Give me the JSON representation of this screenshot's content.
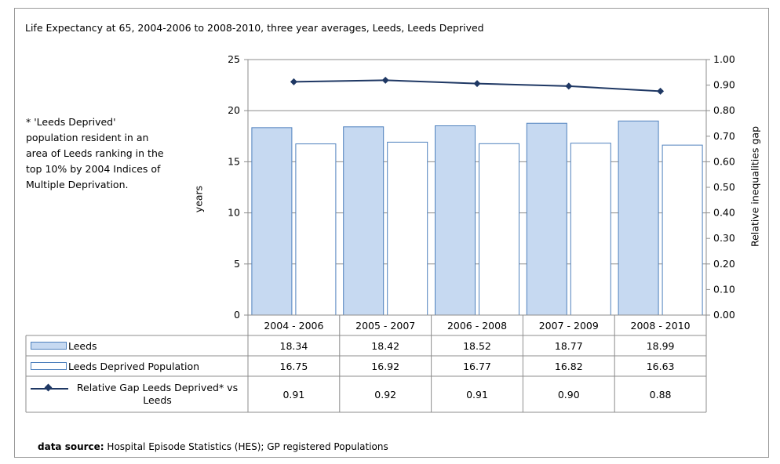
{
  "page_title": "Life Expectancy at 65, 2004-2006 to 2008-2010, three year averages, Leeds, Leeds Deprived",
  "note": "* 'Leeds Deprived' population resident in an area of Leeds ranking in the top 10% by 2004 Indices of Multiple Deprivation.",
  "source": {
    "label": "data source:",
    "text": " Hospital Episode Statistics (HES); GP registered Populations"
  },
  "colors": {
    "leeds_fill": "#c6d9f1",
    "leeds_stroke": "#4f81bd",
    "deprived_fill": "#ffffff",
    "deprived_stroke": "#4f81bd",
    "line": "#1f3864"
  },
  "chart_data": {
    "type": "bar",
    "title": "Life Expectancy at 65, 2004-2006 to 2008-2010, three year averages, Leeds, Leeds Deprived",
    "categories": [
      "2004 - 2006",
      "2005 - 2007",
      "2006 - 2008",
      "2007 - 2009",
      "2008 - 2010"
    ],
    "series": [
      {
        "name": "Leeds",
        "type": "bar",
        "axis": "left",
        "values": [
          18.34,
          18.42,
          18.52,
          18.77,
          18.99
        ],
        "labels": [
          "18.34",
          "18.42",
          "18.52",
          "18.77",
          "18.99"
        ]
      },
      {
        "name": "Leeds Deprived Population",
        "type": "bar",
        "axis": "left",
        "values": [
          16.75,
          16.92,
          16.77,
          16.82,
          16.63
        ],
        "labels": [
          "16.75",
          "16.92",
          "16.77",
          "16.82",
          "16.63"
        ]
      },
      {
        "name": "Relative Gap Leeds Deprived* vs Leeds",
        "type": "line",
        "axis": "right",
        "values": [
          0.913,
          0.919,
          0.906,
          0.896,
          0.876
        ],
        "labels": [
          "0.91",
          "0.92",
          "0.91",
          "0.90",
          "0.88"
        ]
      }
    ],
    "ylabel": "years",
    "ylabel_right": "Relative inequalities gap",
    "ylim": [
      0,
      25
    ],
    "ylim_right": [
      0,
      1
    ],
    "yticks": [
      "0",
      "5",
      "10",
      "15",
      "20",
      "25"
    ],
    "yticks_right": [
      "0.00",
      "0.10",
      "0.20",
      "0.30",
      "0.40",
      "0.50",
      "0.60",
      "0.70",
      "0.80",
      "0.90",
      "1.00"
    ],
    "grid": true,
    "legend": "data table below chart"
  }
}
